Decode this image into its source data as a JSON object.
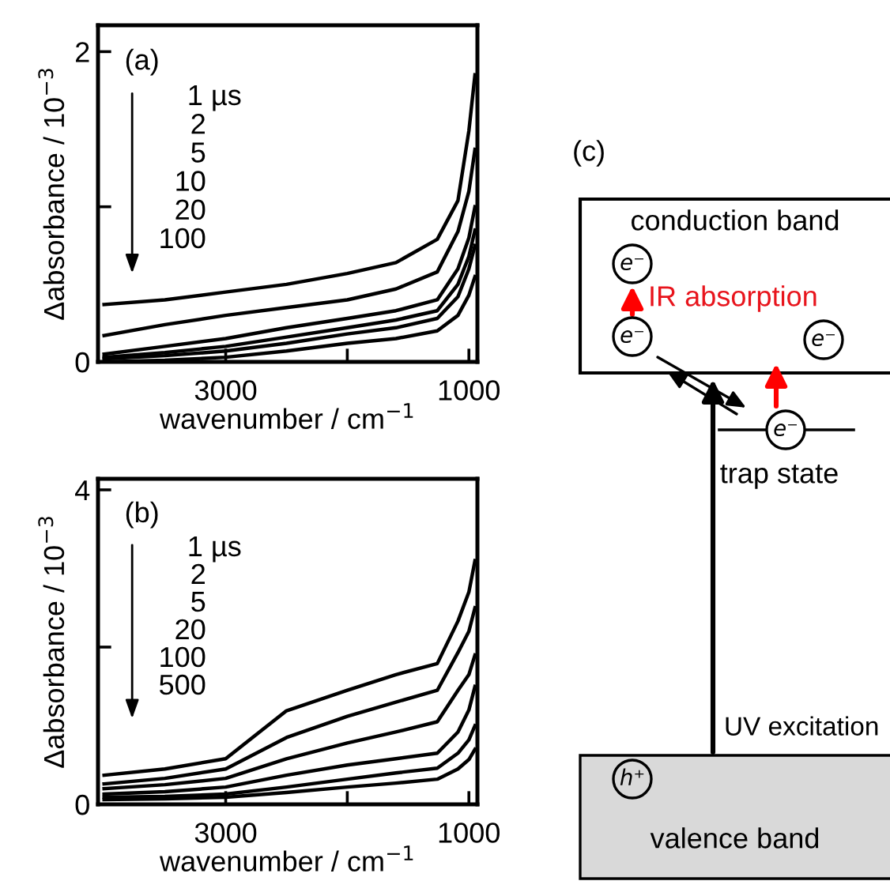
{
  "chart_data": [
    {
      "type": "line",
      "title": "(a)",
      "xlabel": "wavenumber / cm$^{−1}$",
      "ylabel": "Δabsorbance / 10$^{−3}$",
      "x": [
        4000,
        3500,
        3000,
        2500,
        2000,
        1600,
        1260,
        1090,
        1000,
        950
      ],
      "series": [
        {
          "color": "#000000",
          "values": [
            0.37,
            0.4,
            0.45,
            0.5,
            0.57,
            0.64,
            0.79,
            1.04,
            1.49,
            1.85
          ]
        },
        {
          "color": "#000000",
          "values": [
            0.17,
            0.24,
            0.3,
            0.35,
            0.4,
            0.47,
            0.58,
            0.84,
            1.1,
            1.37
          ]
        },
        {
          "color": "#000000",
          "values": [
            0.05,
            0.1,
            0.15,
            0.22,
            0.28,
            0.33,
            0.4,
            0.6,
            0.8,
            1.0
          ]
        },
        {
          "color": "#000000",
          "values": [
            0.03,
            0.06,
            0.1,
            0.16,
            0.22,
            0.27,
            0.33,
            0.5,
            0.68,
            0.85
          ]
        },
        {
          "color": "#000000",
          "values": [
            0.02,
            0.04,
            0.07,
            0.12,
            0.18,
            0.22,
            0.28,
            0.42,
            0.6,
            0.75
          ]
        },
        {
          "color": "#000000",
          "values": [
            0.0,
            0.01,
            0.03,
            0.07,
            0.12,
            0.15,
            0.2,
            0.3,
            0.43,
            0.55
          ]
        }
      ],
      "annotations": [
        "1 µs",
        "2",
        "5",
        "10",
        "20",
        "100"
      ],
      "xlim": [
        4050,
        930
      ],
      "ylim": [
        0,
        2.17
      ],
      "xticks": [
        3000,
        {
          "value": 2000,
          "label": null
        },
        1000
      ],
      "yticks": [
        0,
        {
          "value": 1,
          "label": null
        },
        2
      ],
      "grid": false,
      "legend": false,
      "marker": "none",
      "line_style": "solid"
    },
    {
      "type": "line",
      "title": "(b)",
      "xlabel": "wavenumber / cm$^{−1}$",
      "ylabel": "Δabsorbance / 10$^{−3}$",
      "x": [
        4000,
        3500,
        3000,
        2500,
        2000,
        1600,
        1260,
        1090,
        1000,
        950
      ],
      "series": [
        {
          "color": "#000000",
          "values": [
            0.37,
            0.45,
            0.58,
            1.19,
            1.45,
            1.65,
            1.79,
            2.33,
            2.7,
            3.1
          ]
        },
        {
          "color": "#000000",
          "values": [
            0.26,
            0.33,
            0.45,
            0.85,
            1.12,
            1.3,
            1.45,
            1.93,
            2.2,
            2.5
          ]
        },
        {
          "color": "#000000",
          "values": [
            0.2,
            0.25,
            0.33,
            0.58,
            0.78,
            0.92,
            1.05,
            1.45,
            1.65,
            1.9
          ]
        },
        {
          "color": "#000000",
          "values": [
            0.13,
            0.16,
            0.22,
            0.37,
            0.5,
            0.58,
            0.65,
            0.92,
            1.2,
            1.5
          ]
        },
        {
          "color": "#000000",
          "values": [
            0.09,
            0.1,
            0.13,
            0.22,
            0.32,
            0.4,
            0.46,
            0.65,
            0.82,
            1.0
          ]
        },
        {
          "color": "#000000",
          "values": [
            0.06,
            0.07,
            0.09,
            0.15,
            0.22,
            0.27,
            0.32,
            0.45,
            0.57,
            0.7
          ]
        }
      ],
      "annotations": [
        "1 µs",
        "2",
        "5",
        "20",
        "100",
        "500"
      ],
      "xlim": [
        4050,
        930
      ],
      "ylim": [
        0,
        4.14
      ],
      "xticks": [
        3000,
        {
          "value": 2000,
          "label": null
        },
        1000
      ],
      "yticks": [
        0,
        {
          "value": 2,
          "label": null
        },
        4
      ],
      "grid": false,
      "legend": false,
      "marker": "none",
      "line_style": "solid"
    },
    {
      "type": "other",
      "title": "(c)",
      "annotations": [
        "conduction band",
        "e⁻",
        "e⁻",
        "e⁻",
        "e⁻",
        "IR absorption",
        "trap state",
        "UV excitation",
        "h⁺",
        "valence band"
      ]
    }
  ]
}
